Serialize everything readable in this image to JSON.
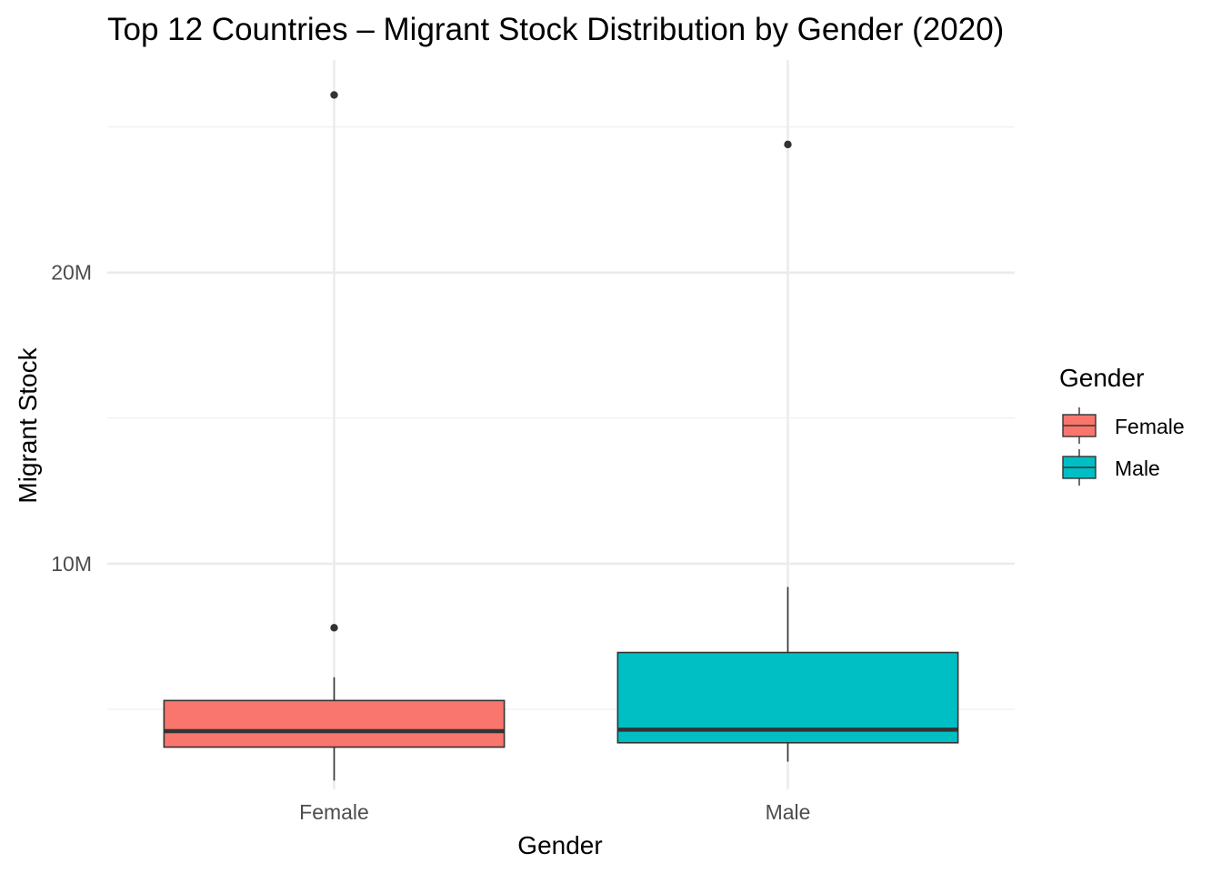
{
  "chart_data": {
    "type": "boxplot",
    "title": "Top 12 Countries – Migrant Stock Distribution by Gender (2020)",
    "xlabel": "Gender",
    "ylabel": "Migrant Stock",
    "categories": [
      "Female",
      "Male"
    ],
    "y_ticks": [
      {
        "value": 10000000,
        "label": "10M"
      },
      {
        "value": 20000000,
        "label": "20M"
      }
    ],
    "y_minor_ticks": [
      5000000,
      15000000,
      25000000
    ],
    "ylim": [
      2250000,
      27300000
    ],
    "grid": true,
    "legend": {
      "title": "Gender",
      "position": "right",
      "entries": [
        {
          "label": "Female",
          "color": "#F8766D"
        },
        {
          "label": "Male",
          "color": "#00BFC4"
        }
      ]
    },
    "boxes": [
      {
        "name": "Female",
        "color": "#F8766D",
        "whisker_low": 2550000,
        "q1": 3700000,
        "median": 4250000,
        "q3": 5300000,
        "whisker_high": 6100000,
        "outliers": [
          7800000,
          26100000
        ]
      },
      {
        "name": "Male",
        "color": "#00BFC4",
        "whisker_low": 3200000,
        "q1": 3850000,
        "median": 4300000,
        "q3": 6950000,
        "whisker_high": 9200000,
        "outliers": [
          24400000
        ]
      }
    ]
  }
}
